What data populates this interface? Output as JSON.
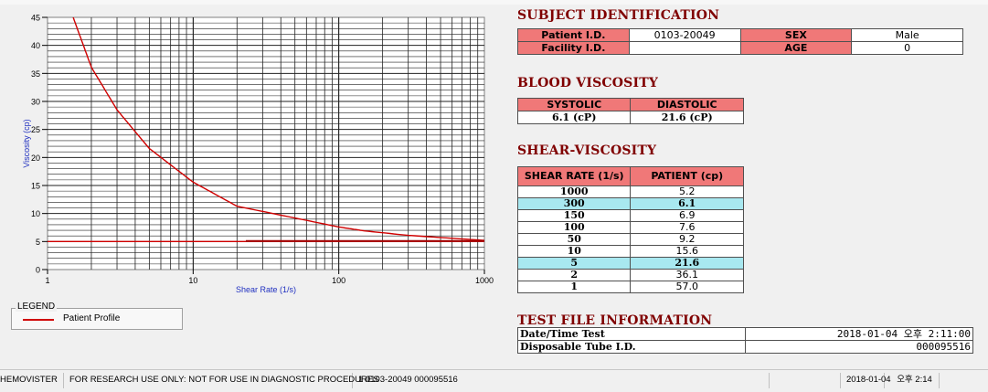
{
  "chart_data": {
    "type": "line",
    "xlabel": "Shear Rate (1/s)",
    "ylabel": "Viscosity (cp)",
    "xscale": "log",
    "xlim": [
      1,
      1000
    ],
    "ylim": [
      0,
      45
    ],
    "xticks": [
      "1",
      "10",
      "100",
      "1000"
    ],
    "yticks": [
      "0",
      "5",
      "10",
      "15",
      "20",
      "25",
      "30",
      "35",
      "40",
      "45"
    ],
    "grid": true,
    "series": [
      {
        "name": "Patient Profile",
        "color": "#d00000",
        "x": [
          1.5,
          2,
          3,
          5,
          10,
          20,
          50,
          100,
          150,
          300,
          1000
        ],
        "y": [
          45,
          36.1,
          28.5,
          21.6,
          15.6,
          11.3,
          9.2,
          7.6,
          6.9,
          6.1,
          5.2
        ]
      },
      {
        "name": "",
        "color": "#d00000",
        "x": [
          1,
          1000
        ],
        "y": [
          5,
          5
        ]
      },
      {
        "name": "",
        "color": "#a00000",
        "x": [
          23,
          1000
        ],
        "y": [
          5.1,
          5.1
        ]
      }
    ],
    "legend": "bottom-left"
  },
  "legend": {
    "title": "LEGEND",
    "label": "Patient Profile"
  },
  "subject": {
    "title": "SUBJECT IDENTIFICATION",
    "patient_id_label": "Patient I.D.",
    "patient_id_value": "0103-20049",
    "sex_label": "SEX",
    "sex_value": "Male",
    "facility_id_label": "Facility I.D.",
    "facility_id_value": "",
    "age_label": "AGE",
    "age_value": "0"
  },
  "blood_viscosity": {
    "title": "BLOOD VISCOSITY",
    "systolic_label": "SYSTOLIC",
    "diastolic_label": "DIASTOLIC",
    "systolic_value": "6.1 (cP)",
    "diastolic_value": "21.6 (cP)"
  },
  "shear_viscosity": {
    "title": "SHEAR-VISCOSITY",
    "col_rate": "SHEAR RATE (1/s)",
    "col_patient": "PATIENT (cp)",
    "rows": [
      {
        "rate": "1000",
        "patient": "5.2"
      },
      {
        "rate": "300",
        "patient": "6.1"
      },
      {
        "rate": "150",
        "patient": "6.9"
      },
      {
        "rate": "100",
        "patient": "7.6"
      },
      {
        "rate": "50",
        "patient": "9.2"
      },
      {
        "rate": "10",
        "patient": "15.6"
      },
      {
        "rate": "5",
        "patient": "21.6"
      },
      {
        "rate": "2",
        "patient": "36.1"
      },
      {
        "rate": "1",
        "patient": "57.0"
      }
    ],
    "highlight_color": "#a8e8f0"
  },
  "test_file": {
    "title": "TEST FILE INFORMATION",
    "date_label": "Date/Time Test",
    "date_value": "2018-01-04  오후 2:11:00",
    "tube_label": "Disposable Tube I.D.",
    "tube_value": "000095516"
  },
  "statusbar": {
    "app": "HEMOVISTER",
    "notice": "FOR RESEARCH USE ONLY: NOT FOR USE IN DIAGNOSTIC PROCEDURES",
    "record": "1  0103-20049  000095516",
    "empty": "",
    "date": "2018-01-04",
    "time": "오후 2:14"
  }
}
